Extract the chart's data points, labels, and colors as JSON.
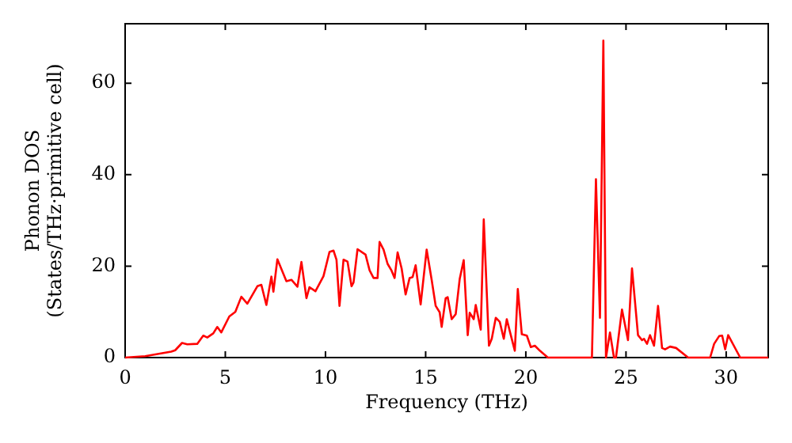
{
  "chart_data": {
    "type": "line",
    "xlabel": "Frequency (THz)",
    "ylabel": "Phonon DOS\n(States/THz·primitive cell)",
    "xlim": [
      0,
      32.1
    ],
    "xticks": [
      0,
      5,
      10,
      15,
      20,
      25,
      30
    ],
    "ylim": [
      0,
      73
    ],
    "yticks": [
      0,
      20,
      40,
      60
    ],
    "series": [
      {
        "color": "#ff0000",
        "x": [
          0,
          1,
          2.3,
          2.5,
          2.84,
          3.1,
          3.6,
          3.9,
          4.1,
          4.4,
          4.6,
          4.8,
          5.2,
          5.5,
          5.8,
          6.1,
          6.6,
          6.8,
          7.05,
          7.3,
          7.4,
          7.6,
          8.05,
          8.3,
          8.6,
          8.8,
          9.05,
          9.2,
          9.5,
          9.9,
          10.2,
          10.4,
          10.55,
          10.7,
          10.9,
          11.1,
          11.3,
          11.4,
          11.6,
          12,
          12.2,
          12.4,
          12.6,
          12.7,
          12.9,
          13.1,
          13.3,
          13.45,
          13.6,
          13.8,
          14,
          14.2,
          14.35,
          14.5,
          14.75,
          15.05,
          15.3,
          15.5,
          15.7,
          15.8,
          16,
          16.1,
          16.3,
          16.5,
          16.7,
          16.9,
          17.1,
          17.2,
          17.4,
          17.5,
          17.75,
          17.9,
          18.16,
          18.3,
          18.5,
          18.7,
          18.9,
          19.05,
          19.25,
          19.45,
          19.6,
          19.8,
          20.05,
          20.25,
          20.45,
          20.7,
          21.1,
          23.3,
          23.5,
          23.7,
          23.87,
          24,
          24.2,
          24.4,
          24.5,
          24.8,
          25.1,
          25.3,
          25.6,
          25.8,
          25.9,
          26.05,
          26.2,
          26.4,
          26.6,
          26.8,
          26.95,
          27.2,
          27.5,
          28.1,
          29.2,
          29.4,
          29.65,
          29.8,
          29.95,
          30.1,
          30.7,
          32.1
        ],
        "values": [
          0,
          0.3,
          1.3,
          1.6,
          3.2,
          2.9,
          3,
          4.8,
          4.4,
          5.3,
          6.7,
          5.5,
          9,
          10,
          13.3,
          11.8,
          15.6,
          15.9,
          11.5,
          17.7,
          14.4,
          21.5,
          16.7,
          17,
          15.5,
          20.9,
          13,
          15.4,
          14.5,
          17.8,
          23.1,
          23.4,
          21.4,
          11.3,
          21.4,
          21,
          15.6,
          16.4,
          23.7,
          22.5,
          19.1,
          17.4,
          17.4,
          25.3,
          23.6,
          20.5,
          19,
          17.4,
          23,
          19.5,
          13.8,
          17.4,
          17.6,
          20.2,
          11.6,
          23.6,
          17,
          11.3,
          9.9,
          6.7,
          13,
          13.2,
          8.4,
          9.5,
          17.2,
          21.3,
          4.9,
          9.8,
          8.4,
          11.5,
          6.1,
          30.2,
          2.6,
          4.1,
          8.7,
          7.8,
          4.1,
          8.4,
          4.9,
          1.5,
          15,
          5.1,
          4.8,
          2.3,
          2.6,
          1.5,
          0,
          0,
          39,
          8.7,
          69.3,
          0,
          5.5,
          0,
          0,
          10.5,
          3.8,
          19.5,
          4.9,
          3.8,
          4.1,
          3,
          4.9,
          2.6,
          11.3,
          2.1,
          1.8,
          2.4,
          2.1,
          0,
          0,
          3,
          4.7,
          4.8,
          1.8,
          4.9,
          0,
          0
        ]
      }
    ]
  }
}
